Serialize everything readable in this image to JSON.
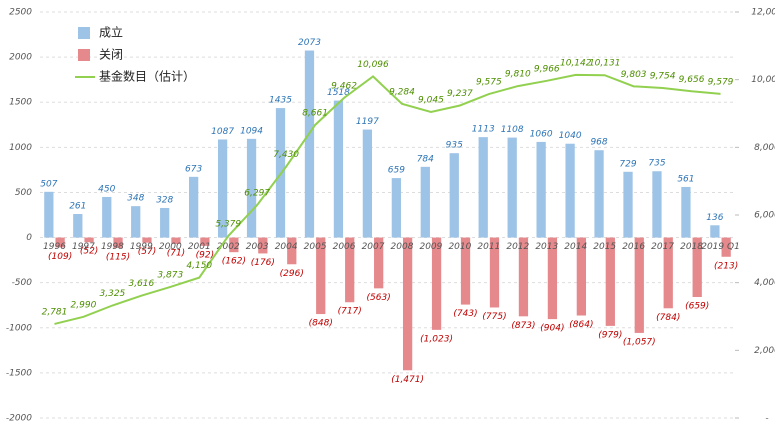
{
  "chart_data": {
    "type": "bar-line",
    "categories": [
      "1996",
      "1997",
      "1998",
      "1999",
      "2000",
      "2001",
      "2002",
      "2003",
      "2004",
      "2005",
      "2006",
      "2007",
      "2008",
      "2009",
      "2010",
      "2011",
      "2012",
      "2013",
      "2014",
      "2015",
      "2016",
      "2017",
      "2018",
      "2019 Q1"
    ],
    "series": [
      {
        "name": "成立",
        "color": "#9dc3e6",
        "label_color": "#2e75b6",
        "type": "bar",
        "values": [
          507,
          261,
          450,
          348,
          328,
          673,
          1087,
          1094,
          1435,
          2073,
          1518,
          1197,
          659,
          784,
          935,
          1113,
          1108,
          1060,
          1040,
          968,
          729,
          735,
          561,
          136
        ]
      },
      {
        "name": "关闭",
        "color": "#e6898d",
        "label_color": "#c00000",
        "type": "bar",
        "values": [
          -109,
          -52,
          -115,
          -57,
          -71,
          -92,
          -162,
          -176,
          -296,
          -848,
          -717,
          -563,
          -1471,
          -1023,
          -743,
          -775,
          -873,
          -904,
          -864,
          -979,
          -1057,
          -784,
          -659,
          -213
        ],
        "value_labels": [
          "(109)",
          "(52)",
          "(115)",
          "(57)",
          "(71)",
          "(92)",
          "(162)",
          "(176)",
          "(296)",
          "(848)",
          "(717)",
          "(563)",
          "(1,471)",
          "(1,023)",
          "(743)",
          "(775)",
          "(873)",
          "(904)",
          "(864)",
          "(979)",
          "(1,057)",
          "(784)",
          "(659)",
          "(213)"
        ]
      },
      {
        "name": "基金数目（估计）",
        "color": "#92d050",
        "label_color": "#4e8f00",
        "type": "line",
        "axis": "y2",
        "values": [
          2781,
          2990,
          3325,
          3616,
          3873,
          4150,
          5379,
          6297,
          7430,
          8661,
          9462,
          10096,
          9284,
          9045,
          9237,
          9575,
          9810,
          9966,
          10142,
          10131,
          9803,
          9754,
          9656,
          9579
        ],
        "value_labels": [
          "2,781",
          "2,990",
          "3,325",
          "3,616",
          "3,873",
          "4,150",
          "5,379",
          "6,297",
          "7,430",
          "8,661",
          "9,462",
          "10,096",
          "9,284",
          "9,045",
          "9,237",
          "9,575",
          "9,810",
          "9,966",
          "10,142",
          "10,131",
          "9,803",
          "9,754",
          "9,656",
          "9,579"
        ]
      }
    ],
    "ylim": [
      -2000,
      2500
    ],
    "yticks": [
      -2000,
      -1500,
      -1000,
      -500,
      0,
      500,
      1000,
      1500,
      2000,
      2500
    ],
    "y2lim": [
      0,
      12000
    ],
    "y2ticks": [
      {
        "value": 0,
        "label": "-"
      },
      {
        "value": 2000,
        "label": "2,000"
      },
      {
        "value": 4000,
        "label": "4,000"
      },
      {
        "value": 6000,
        "label": "6,000"
      },
      {
        "value": 8000,
        "label": "8,000"
      },
      {
        "value": 10000,
        "label": "10,000"
      },
      {
        "value": 12000,
        "label": "12,000"
      }
    ],
    "grid": true,
    "legend": "top-left"
  }
}
